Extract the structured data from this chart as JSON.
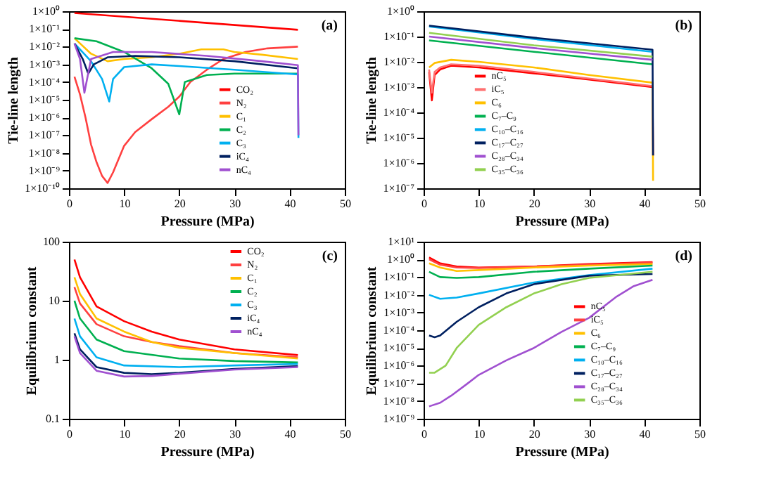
{
  "chart_data": [
    {
      "type": "line",
      "title": "(a)",
      "xlabel": "Pressure (MPa)",
      "ylabel": "Tie-line length",
      "log": true,
      "legend": "bottom right",
      "xlim": [
        0,
        50
      ],
      "xticks": [
        0,
        10,
        20,
        30,
        40,
        50
      ],
      "ylim": [
        1e-10,
        1
      ],
      "yticks": [
        {
          "value": 1e-10,
          "label": "1×10⁻¹⁰"
        },
        {
          "value": 1e-09,
          "label": "1×10⁻⁹"
        },
        {
          "value": 1e-08,
          "label": "1×10⁻⁸"
        },
        {
          "value": 1e-07,
          "label": "1×10⁻⁷"
        },
        {
          "value": 1e-06,
          "label": "1×10⁻⁶"
        },
        {
          "value": 1e-05,
          "label": "1×10⁻⁵"
        },
        {
          "value": 0.0001,
          "label": "1×10⁻⁴"
        },
        {
          "value": 0.001,
          "label": "1×10⁻³"
        },
        {
          "value": 0.01,
          "label": "1×10⁻²"
        },
        {
          "value": 0.1,
          "label": "1×10⁻¹"
        },
        {
          "value": 1,
          "label": "1×10⁰"
        }
      ],
      "series": [
        {
          "name": "CO₂",
          "color": "#ff0000",
          "x": [
            1,
            41.5
          ],
          "values": [
            0.8,
            0.09
          ]
        },
        {
          "name": "N₂",
          "color": "#ff4040",
          "x": [
            1,
            2,
            3,
            4,
            5,
            6,
            7,
            8,
            10,
            12,
            15,
            18,
            20,
            22,
            25,
            28,
            32,
            36,
            41.5
          ],
          "values": [
            0.0002,
            2e-05,
            1e-06,
            3e-08,
            3e-09,
            5e-10,
            2e-10,
            8e-10,
            2.5e-08,
            1.5e-07,
            8e-07,
            4e-06,
            1.5e-05,
            0.0001,
            0.0005,
            0.002,
            0.005,
            0.008,
            0.01
          ]
        },
        {
          "name": "C₁",
          "color": "#ffc000",
          "x": [
            1,
            4,
            7,
            10,
            15,
            20,
            24,
            28,
            30,
            35,
            41.5
          ],
          "values": [
            0.03,
            0.004,
            0.0015,
            0.002,
            0.0025,
            0.004,
            0.007,
            0.007,
            0.005,
            0.0035,
            0.002
          ]
        },
        {
          "name": "C₂",
          "color": "#00b050",
          "x": [
            1,
            5,
            10,
            15,
            18,
            20,
            21,
            25,
            30,
            41.5
          ],
          "values": [
            0.03,
            0.02,
            0.005,
            0.0006,
            8e-05,
            1.5e-06,
            0.0001,
            0.00025,
            0.0003,
            0.0003
          ]
        },
        {
          "name": "C₃",
          "color": "#00b0f0",
          "x": [
            1,
            4,
            6,
            7.3,
            8,
            10,
            15,
            20,
            30,
            41.5,
            41.6
          ],
          "values": [
            0.015,
            0.0015,
            0.00015,
            8e-06,
            0.00015,
            0.0007,
            0.001,
            0.0008,
            0.0005,
            0.00027,
            7e-08
          ]
        },
        {
          "name": "iC₄",
          "color": "#002060",
          "x": [
            1,
            2.5,
            3.5,
            4.5,
            7,
            12,
            20,
            30,
            41.5
          ],
          "values": [
            0.015,
            0.002,
            0.0003,
            0.001,
            0.0025,
            0.003,
            0.0025,
            0.0015,
            0.0006
          ]
        },
        {
          "name": "nC₄",
          "color": "#a050d0",
          "x": [
            1,
            2,
            2.8,
            4,
            8,
            15,
            25,
            35,
            41.5,
            41.6
          ],
          "values": [
            0.015,
            0.002,
            2.5e-05,
            0.002,
            0.005,
            0.005,
            0.003,
            0.0015,
            0.0009,
            1e-07
          ]
        }
      ]
    },
    {
      "type": "line",
      "title": "(b)",
      "xlabel": "Pressure (MPa)",
      "ylabel": "Tie-line length",
      "log": true,
      "legend": "bottom left",
      "xlim": [
        0,
        50
      ],
      "xticks": [
        0,
        10,
        20,
        30,
        40,
        50
      ],
      "ylim": [
        1e-07,
        1
      ],
      "yticks": [
        {
          "value": 1e-07,
          "label": "1×10⁻⁷"
        },
        {
          "value": 1e-06,
          "label": "1×10⁻⁶"
        },
        {
          "value": 1e-05,
          "label": "1×10⁻⁵"
        },
        {
          "value": 0.0001,
          "label": "1×10⁻⁴"
        },
        {
          "value": 0.001,
          "label": "1×10⁻³"
        },
        {
          "value": 0.01,
          "label": "1×10⁻²"
        },
        {
          "value": 0.1,
          "label": "1×10⁻¹"
        },
        {
          "value": 1,
          "label": "1×10⁰"
        }
      ],
      "series": [
        {
          "name": "nC₅",
          "color": "#ff0000",
          "x": [
            1,
            1.5,
            2,
            3,
            5,
            10,
            20,
            30,
            41.5,
            41.6
          ],
          "values": [
            0.004,
            0.0003,
            0.003,
            0.005,
            0.007,
            0.006,
            0.0035,
            0.002,
            0.001,
            2e-06
          ]
        },
        {
          "name": "iC₅",
          "color": "#ff7070",
          "x": [
            1,
            1.5,
            2,
            3,
            5,
            10,
            20,
            30,
            41.5
          ],
          "values": [
            0.005,
            0.0006,
            0.004,
            0.006,
            0.008,
            0.007,
            0.004,
            0.0022,
            0.0011
          ]
        },
        {
          "name": "C₆",
          "color": "#ffc000",
          "x": [
            1,
            2,
            5,
            10,
            20,
            30,
            41.5,
            41.6
          ],
          "values": [
            0.006,
            0.009,
            0.012,
            0.01,
            0.006,
            0.003,
            0.0015,
            2e-07
          ]
        },
        {
          "name": "C₇–C₉",
          "color": "#00b050",
          "x": [
            1,
            20,
            41.5
          ],
          "values": [
            0.07,
            0.025,
            0.008
          ]
        },
        {
          "name": "C₁₀–C₁₆",
          "color": "#00b0f0",
          "x": [
            1,
            20,
            41.5
          ],
          "values": [
            0.25,
            0.08,
            0.025
          ]
        },
        {
          "name": "C₁₇–C₂₇",
          "color": "#002060",
          "x": [
            1,
            20,
            41.5,
            41.6
          ],
          "values": [
            0.27,
            0.09,
            0.03,
            2e-06
          ]
        },
        {
          "name": "C₂₈–C₃₄",
          "color": "#a050d0",
          "x": [
            1,
            20,
            41.5
          ],
          "values": [
            0.1,
            0.035,
            0.012
          ]
        },
        {
          "name": "C₃₅–C₃₆",
          "color": "#92d050",
          "x": [
            1,
            20,
            41.5
          ],
          "values": [
            0.14,
            0.045,
            0.016
          ]
        }
      ]
    },
    {
      "type": "line",
      "title": "(c)",
      "xlabel": "Pressure (MPa)",
      "ylabel": "Equilibrium constant",
      "log": true,
      "legend": "top right",
      "xlim": [
        0,
        50
      ],
      "xticks": [
        0,
        10,
        20,
        30,
        40,
        50
      ],
      "ylim": [
        0.1,
        100
      ],
      "yticks": [
        0.1,
        1,
        10,
        100
      ],
      "series": [
        {
          "name": "CO₂",
          "color": "#ff0000",
          "x": [
            1,
            2,
            5,
            10,
            15,
            20,
            30,
            41.5
          ],
          "values": [
            50,
            25,
            8,
            4.5,
            3,
            2.2,
            1.5,
            1.2
          ]
        },
        {
          "name": "N₂",
          "color": "#ff4040",
          "x": [
            1,
            2,
            5,
            10,
            15,
            20,
            30,
            41.5
          ],
          "values": [
            17,
            9,
            4,
            2.5,
            2,
            1.7,
            1.3,
            1.1
          ]
        },
        {
          "name": "C₁",
          "color": "#ffc000",
          "x": [
            1,
            2,
            5,
            10,
            15,
            20,
            30,
            41.5
          ],
          "values": [
            25,
            13,
            5,
            3,
            2,
            1.6,
            1.3,
            1.05
          ]
        },
        {
          "name": "C₂",
          "color": "#00b050",
          "x": [
            1,
            2,
            5,
            10,
            20,
            30,
            41.5
          ],
          "values": [
            10,
            5,
            2.2,
            1.4,
            1.05,
            0.95,
            0.9
          ]
        },
        {
          "name": "C₃",
          "color": "#00b0f0",
          "x": [
            1,
            2,
            5,
            10,
            20,
            30,
            41.5
          ],
          "values": [
            5,
            2.5,
            1.1,
            0.8,
            0.75,
            0.8,
            0.85
          ]
        },
        {
          "name": "iC₄",
          "color": "#002060",
          "x": [
            1,
            2,
            5,
            10,
            15,
            20,
            30,
            41.5
          ],
          "values": [
            2.8,
            1.5,
            0.75,
            0.6,
            0.57,
            0.6,
            0.7,
            0.78
          ]
        },
        {
          "name": "nC₄",
          "color": "#a050d0",
          "x": [
            1,
            2,
            5,
            10,
            15,
            20,
            30,
            41.5
          ],
          "values": [
            2.5,
            1.3,
            0.65,
            0.52,
            0.53,
            0.58,
            0.68,
            0.75
          ]
        }
      ]
    },
    {
      "type": "line",
      "title": "(d)",
      "xlabel": "Pressure (MPa)",
      "ylabel": "Equilibrium constant",
      "log": true,
      "legend": "bottom right",
      "xlim": [
        0,
        50
      ],
      "xticks": [
        0,
        10,
        20,
        30,
        40,
        50
      ],
      "ylim": [
        1e-09,
        10
      ],
      "yticks": [
        {
          "value": 1e-09,
          "label": "1×10⁻⁹"
        },
        {
          "value": 1e-08,
          "label": "1×10⁻⁸"
        },
        {
          "value": 1e-07,
          "label": "1×10⁻⁷"
        },
        {
          "value": 1e-06,
          "label": "1×10⁻⁶"
        },
        {
          "value": 1e-05,
          "label": "1×10⁻⁵"
        },
        {
          "value": 0.0001,
          "label": "1×10⁻⁴"
        },
        {
          "value": 0.001,
          "label": "1×10⁻³"
        },
        {
          "value": 0.01,
          "label": "1×10⁻²"
        },
        {
          "value": 0.1,
          "label": "1×10⁻¹"
        },
        {
          "value": 1,
          "label": "1×10⁰"
        },
        {
          "value": 10,
          "label": "1×10¹"
        }
      ],
      "series": [
        {
          "name": "nC₅",
          "color": "#ff0000",
          "x": [
            1,
            3,
            6,
            10,
            20,
            30,
            41.5
          ],
          "values": [
            1.3,
            0.6,
            0.4,
            0.35,
            0.4,
            0.55,
            0.7
          ]
        },
        {
          "name": "iC₅",
          "color": "#ff4040",
          "x": [
            1,
            3,
            6,
            10,
            20,
            30,
            41.5
          ],
          "values": [
            1,
            0.5,
            0.35,
            0.33,
            0.4,
            0.5,
            0.65
          ]
        },
        {
          "name": "C₆",
          "color": "#ffc000",
          "x": [
            1,
            3,
            6,
            10,
            20,
            30,
            41.5
          ],
          "values": [
            0.6,
            0.35,
            0.22,
            0.25,
            0.35,
            0.45,
            0.55
          ]
        },
        {
          "name": "C₇–C₉",
          "color": "#00b050",
          "x": [
            1,
            3,
            6,
            10,
            20,
            30,
            41.5
          ],
          "values": [
            0.2,
            0.1,
            0.09,
            0.1,
            0.2,
            0.3,
            0.45
          ]
        },
        {
          "name": "C₁₀–C₁₆",
          "color": "#00b0f0",
          "x": [
            1,
            3,
            6,
            10,
            20,
            30,
            41.5
          ],
          "values": [
            0.01,
            0.006,
            0.007,
            0.012,
            0.05,
            0.13,
            0.3
          ]
        },
        {
          "name": "C₁₇–C₂₇",
          "color": "#002060",
          "x": [
            1,
            2,
            3,
            6,
            10,
            15,
            20,
            30,
            41.5
          ],
          "values": [
            5e-05,
            4e-05,
            5e-05,
            0.0003,
            0.002,
            0.012,
            0.04,
            0.12,
            0.15
          ]
        },
        {
          "name": "C₂₈–C₃₄",
          "color": "#a050d0",
          "x": [
            1,
            3,
            5,
            8,
            10,
            15,
            20,
            25,
            30,
            35,
            38,
            41.5
          ],
          "values": [
            5e-09,
            8e-09,
            2e-08,
            1e-07,
            3e-07,
            2e-06,
            1e-05,
            8e-05,
            0.0005,
            0.008,
            0.03,
            0.07
          ]
        },
        {
          "name": "C₃₅–C₃₆",
          "color": "#92d050",
          "x": [
            1,
            2,
            4,
            6,
            10,
            15,
            20,
            25,
            30,
            41.5
          ],
          "values": [
            4e-07,
            4e-07,
            1e-06,
            1e-05,
            0.0002,
            0.002,
            0.012,
            0.04,
            0.09,
            0.2
          ]
        }
      ]
    }
  ]
}
